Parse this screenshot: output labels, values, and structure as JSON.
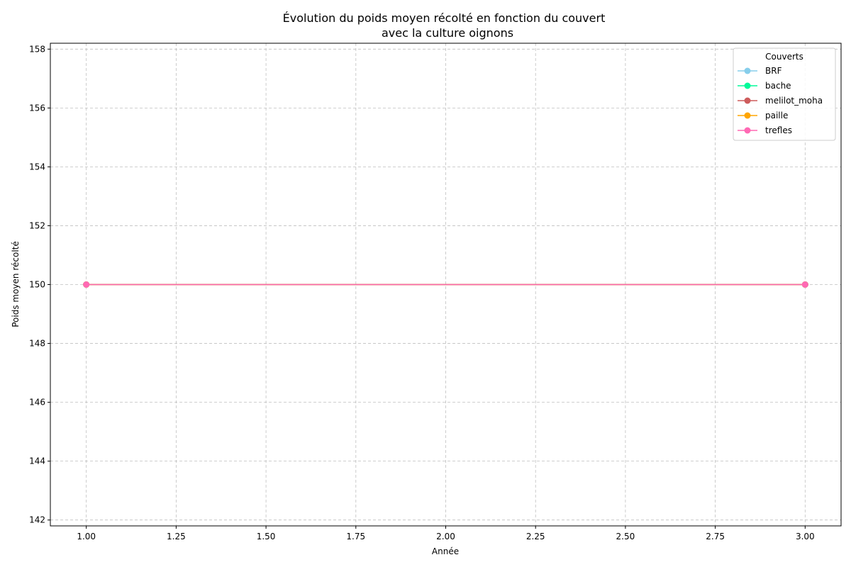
{
  "chart_data": {
    "type": "line",
    "title_line1": "Évolution du poids moyen récolté en fonction du couvert",
    "title_line2": "avec la culture oignons",
    "xlabel": "Année",
    "ylabel": "Poids moyen récolté",
    "xlim": [
      0.9,
      3.1
    ],
    "ylim": [
      141.8,
      158.2
    ],
    "xticks": [
      1.0,
      1.25,
      1.5,
      1.75,
      2.0,
      2.25,
      2.5,
      2.75,
      3.0
    ],
    "xtick_labels": [
      "1.00",
      "1.25",
      "1.50",
      "1.75",
      "2.00",
      "2.25",
      "2.50",
      "2.75",
      "3.00"
    ],
    "yticks": [
      142,
      144,
      146,
      148,
      150,
      152,
      154,
      156,
      158
    ],
    "ytick_labels": [
      "142",
      "144",
      "146",
      "148",
      "150",
      "152",
      "154",
      "156",
      "158"
    ],
    "grid": true,
    "legend_title": "Couverts",
    "legend_position": "top-right",
    "series": [
      {
        "name": "BRF",
        "color": "#87ceeb",
        "x": [
          1,
          3
        ],
        "y": [
          150,
          150
        ]
      },
      {
        "name": "bache",
        "color": "#00fa9a",
        "x": [
          1,
          3
        ],
        "y": [
          150,
          150
        ]
      },
      {
        "name": "melilot_moha",
        "color": "#cd5c5c",
        "x": [
          1,
          3
        ],
        "y": [
          150,
          150
        ]
      },
      {
        "name": "paille",
        "color": "#ffa500",
        "x": [
          1,
          3
        ],
        "y": [
          150,
          150
        ]
      },
      {
        "name": "trefles",
        "color": "#ff69b4",
        "x": [
          1,
          3
        ],
        "y": [
          150,
          150
        ]
      }
    ]
  }
}
